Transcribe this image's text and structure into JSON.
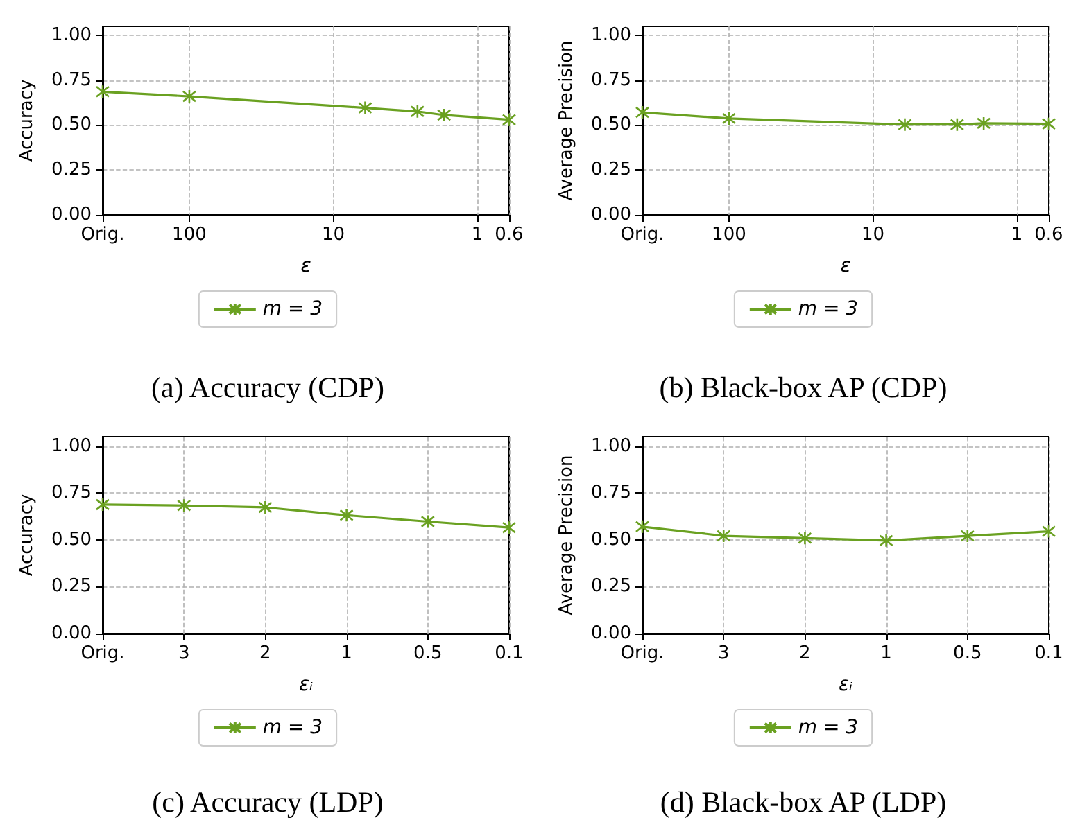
{
  "chart_data": [
    {
      "type": "line",
      "title": "(a) Accuracy (CDP)",
      "xlabel": "ε",
      "ylabel": "Accuracy",
      "log": "x",
      "x": [
        400,
        100,
        6,
        2.6,
        1.7,
        0.6
      ],
      "series": [
        {
          "name": "m = 3",
          "color": "#6aa121",
          "values": [
            0.686,
            0.66,
            0.596,
            0.576,
            0.556,
            0.53
          ]
        }
      ],
      "xlim": [
        400,
        0.6
      ],
      "xticks": [
        {
          "value": 400,
          "label": "Orig."
        },
        100,
        10,
        1,
        0.6
      ],
      "ylim": [
        0,
        1.05
      ],
      "yticks": [
        {
          "value": 0,
          "label": "0.00"
        },
        {
          "value": 0.25,
          "label": "0.25"
        },
        {
          "value": 0.5,
          "label": "0.50"
        },
        {
          "value": 0.75,
          "label": "0.75"
        },
        {
          "value": 1,
          "label": "1.00"
        }
      ],
      "grid": true,
      "legend": "bottom",
      "marker": "cross",
      "line_style": "solid"
    },
    {
      "type": "line",
      "title": "(b) Black-box AP (CDP)",
      "xlabel": "ε",
      "ylabel": "Average Precision",
      "log": "x",
      "x": [
        400,
        100,
        6,
        2.6,
        1.7,
        0.6
      ],
      "series": [
        {
          "name": "m = 3",
          "color": "#6aa121",
          "values": [
            0.571,
            0.537,
            0.503,
            0.503,
            0.51,
            0.507
          ]
        }
      ],
      "xlim": [
        400,
        0.6
      ],
      "xticks": [
        {
          "value": 400,
          "label": "Orig."
        },
        100,
        10,
        1,
        0.6
      ],
      "ylim": [
        0,
        1.05
      ],
      "yticks": [
        {
          "value": 0,
          "label": "0.00"
        },
        {
          "value": 0.25,
          "label": "0.25"
        },
        {
          "value": 0.5,
          "label": "0.50"
        },
        {
          "value": 0.75,
          "label": "0.75"
        },
        {
          "value": 1,
          "label": "1.00"
        }
      ],
      "grid": true,
      "legend": "bottom",
      "marker": "cross",
      "line_style": "solid"
    },
    {
      "type": "line",
      "title": "(c) Accuracy (LDP)",
      "xlabel": "εᵢ",
      "ylabel": "Accuracy",
      "categories": [
        "Orig.",
        "3",
        "2",
        "1",
        "0.5",
        "0.1"
      ],
      "series": [
        {
          "name": "m = 3",
          "color": "#6aa121",
          "values": [
            0.688,
            0.683,
            0.673,
            0.631,
            0.597,
            0.565
          ]
        }
      ],
      "ylim": [
        0,
        1.05
      ],
      "yticks": [
        {
          "value": 0,
          "label": "0.00"
        },
        {
          "value": 0.25,
          "label": "0.25"
        },
        {
          "value": 0.5,
          "label": "0.50"
        },
        {
          "value": 0.75,
          "label": "0.75"
        },
        {
          "value": 1,
          "label": "1.00"
        }
      ],
      "grid": true,
      "legend": "bottom",
      "marker": "cross",
      "line_style": "solid"
    },
    {
      "type": "line",
      "title": "(d) Black-box AP (LDP)",
      "xlabel": "εᵢ",
      "ylabel": "Average Precision",
      "categories": [
        "Orig.",
        "3",
        "2",
        "1",
        "0.5",
        "0.1"
      ],
      "series": [
        {
          "name": "m = 3",
          "color": "#6aa121",
          "values": [
            0.57,
            0.521,
            0.509,
            0.496,
            0.521,
            0.545
          ]
        }
      ],
      "ylim": [
        0,
        1.05
      ],
      "yticks": [
        {
          "value": 0,
          "label": "0.00"
        },
        {
          "value": 0.25,
          "label": "0.25"
        },
        {
          "value": 0.5,
          "label": "0.50"
        },
        {
          "value": 0.75,
          "label": "0.75"
        },
        {
          "value": 1,
          "label": "1.00"
        }
      ],
      "grid": true,
      "legend": "bottom",
      "marker": "cross",
      "line_style": "solid"
    }
  ]
}
